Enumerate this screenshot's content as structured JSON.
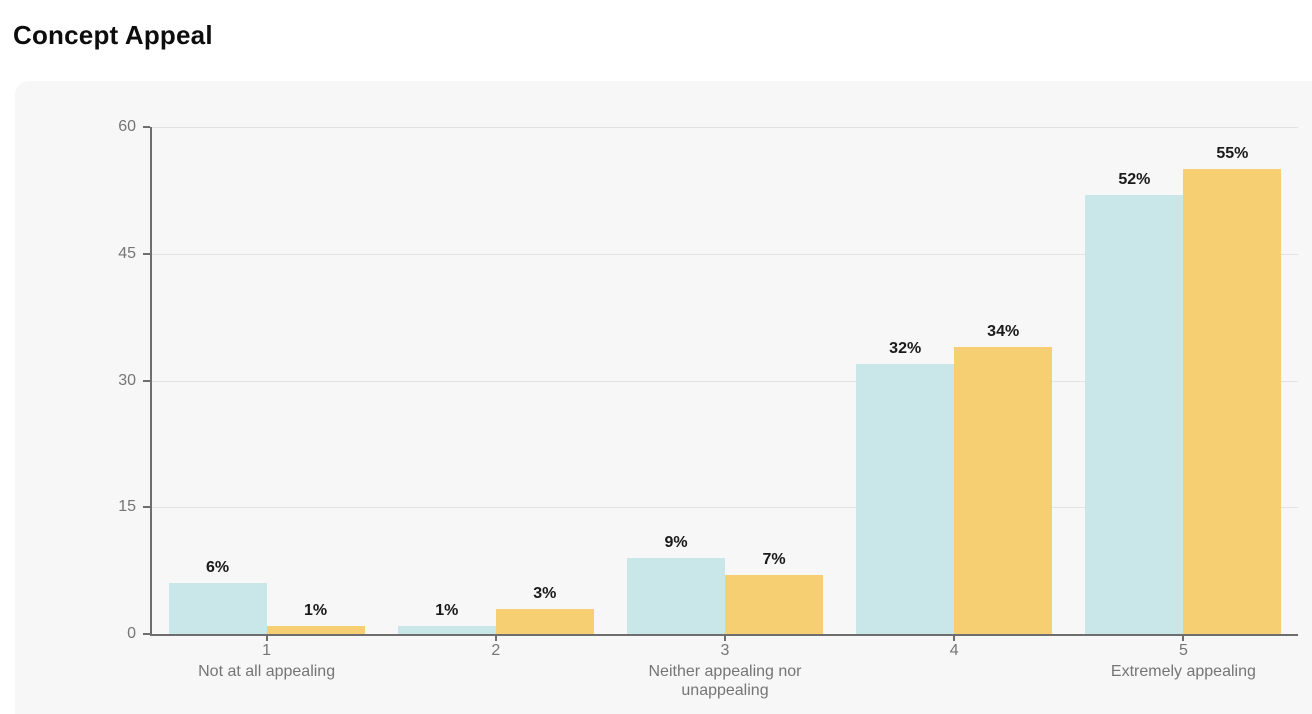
{
  "header": {
    "title": "Concept Appeal"
  },
  "chart_data": {
    "type": "bar",
    "title": "Concept Appeal",
    "categories": [
      "1",
      "2",
      "3",
      "4",
      "5"
    ],
    "category_descriptions": [
      "Not at all appealing",
      "",
      "Neither appealing nor unappealing",
      "",
      "Extremely appealing"
    ],
    "series": [
      {
        "color": "#c9e7e8",
        "values": [
          6,
          1,
          9,
          32,
          52
        ],
        "labels": [
          "6%",
          "1%",
          "9%",
          "32%",
          "52%"
        ]
      },
      {
        "color": "#f5cf72",
        "values": [
          1,
          3,
          7,
          34,
          55
        ],
        "labels": [
          "1%",
          "3%",
          "7%",
          "34%",
          "55%"
        ]
      }
    ],
    "xlabel": "",
    "ylabel": "",
    "ylim": [
      0,
      60
    ],
    "yticks": [
      0,
      15,
      30,
      45,
      60
    ],
    "grid": true,
    "legend": "none",
    "styles": {
      "page_bg": "#ffffff",
      "card_bg": "#f7f7f7",
      "axis_color": "#6e6e6e",
      "grid_color": "#e3e3e3",
      "tick_label_color": "#757575",
      "data_label_color": "#1a1a1a"
    }
  }
}
